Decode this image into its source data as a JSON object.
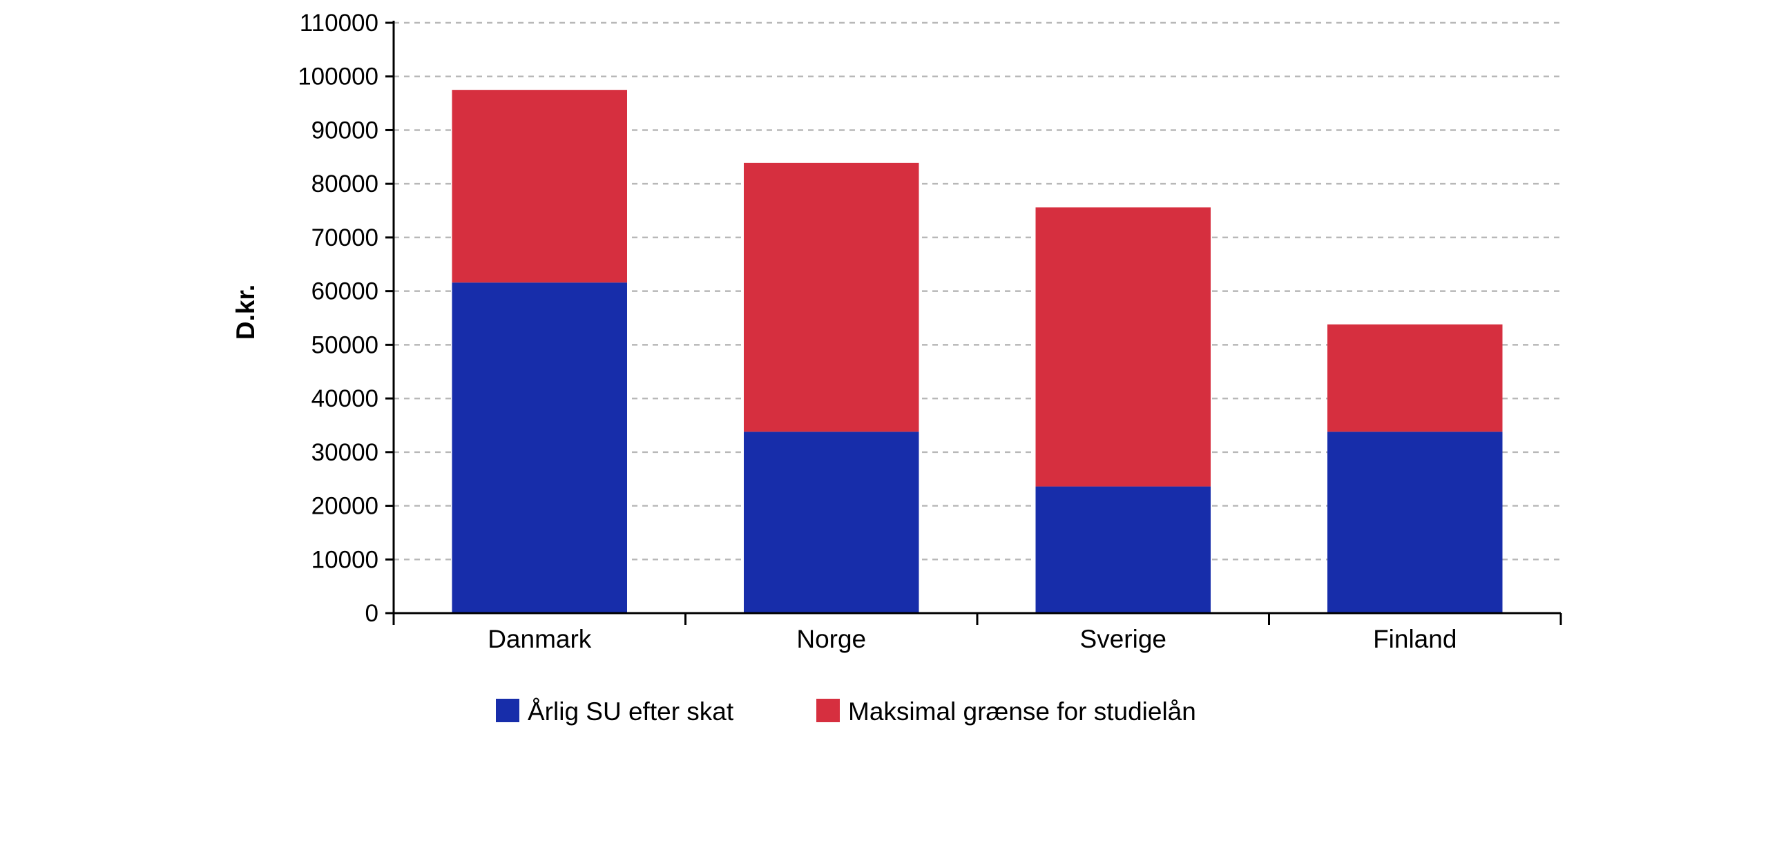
{
  "chart_data": {
    "type": "bar",
    "stacked": true,
    "categories": [
      "Danmark",
      "Norge",
      "Sverige",
      "Finland"
    ],
    "series": [
      {
        "name": "Årlig SU efter skat",
        "color": "#172daa",
        "values": [
          61600,
          33800,
          23600,
          33800
        ]
      },
      {
        "name": "Maksimal grænse for studielån",
        "color": "#d62f3f",
        "values": [
          35900,
          50100,
          52000,
          20000
        ]
      }
    ],
    "ylabel": "D.kr.",
    "xlabel": "",
    "ylim": [
      0,
      110000
    ],
    "yticks": [
      0,
      10000,
      20000,
      30000,
      40000,
      50000,
      60000,
      70000,
      80000,
      90000,
      100000,
      110000
    ],
    "grid": true,
    "legend_position": "bottom"
  }
}
